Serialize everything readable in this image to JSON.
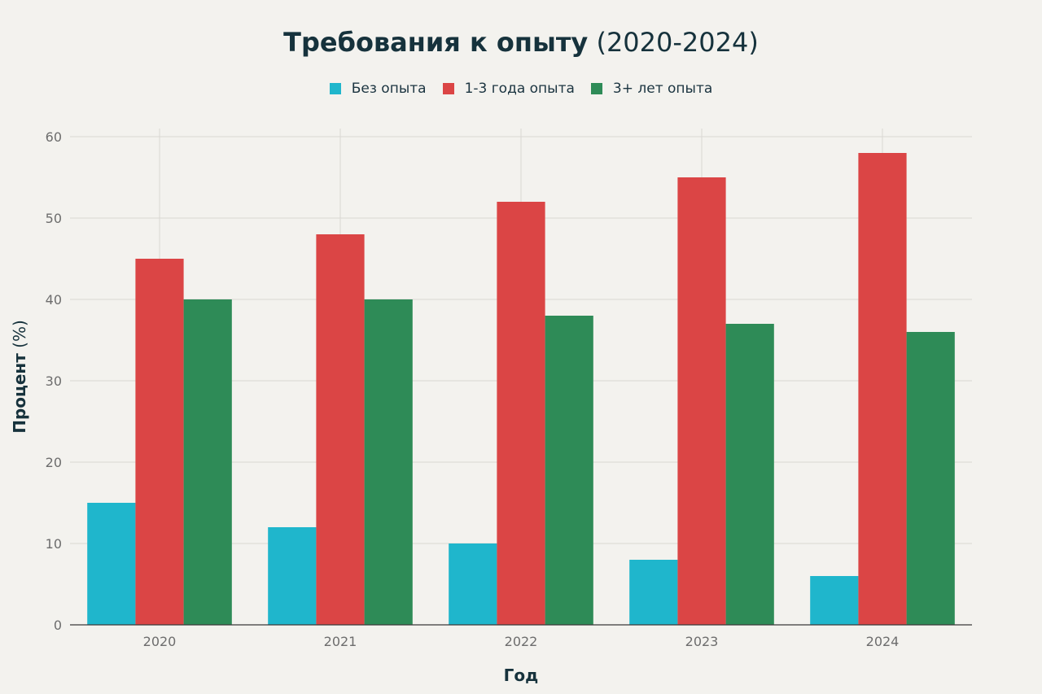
{
  "chart_data": {
    "type": "bar",
    "title": "Требования к опыту",
    "title_suffix": "(2020-2024)",
    "xlabel": "Год",
    "ylabel": "Процент",
    "ylabel_suffix": "(%)",
    "categories": [
      "2020",
      "2021",
      "2022",
      "2023",
      "2024"
    ],
    "series": [
      {
        "name": "Без опыта",
        "color": "#1fb6cc",
        "values": [
          15,
          12,
          10,
          8,
          6
        ]
      },
      {
        "name": "1-3 года опыта",
        "color": "#db4545",
        "values": [
          45,
          48,
          52,
          55,
          58
        ]
      },
      {
        "name": "3+ лет опыта",
        "color": "#2e8b57",
        "values": [
          40,
          40,
          38,
          37,
          36
        ]
      }
    ],
    "ylim": [
      0,
      60
    ],
    "yticks": [
      0,
      10,
      20,
      30,
      40,
      50,
      60
    ],
    "grid": true,
    "legend_position": "top-center"
  }
}
